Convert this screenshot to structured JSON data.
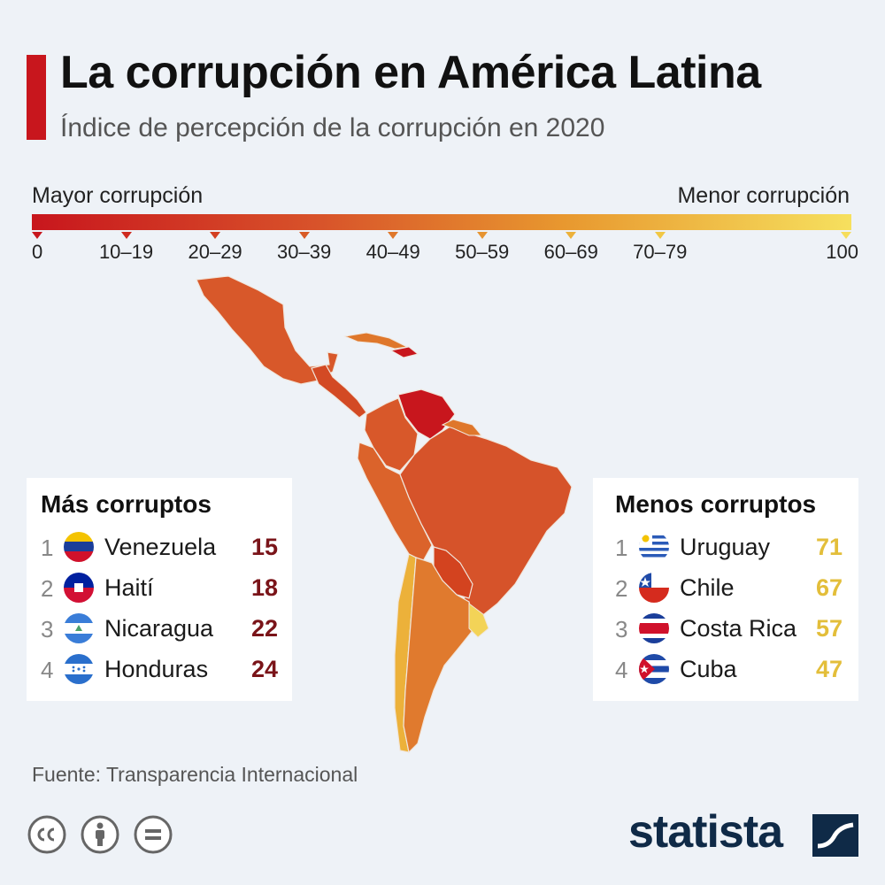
{
  "header": {
    "title": "La corrupción en América Latina",
    "subtitle": "Índice de percepción de la corrupción en 2020"
  },
  "legend": {
    "left_label": "Mayor corrupción",
    "right_label": "Menor corrupción",
    "scale_min": 0,
    "scale_max": 100,
    "ticks": [
      {
        "label": "0",
        "value": 0,
        "color": "#c8161d"
      },
      {
        "label": "10–19",
        "value": 11,
        "color": "#cf2a1f"
      },
      {
        "label": "20–29",
        "value": 22,
        "color": "#d33f22"
      },
      {
        "label": "30–39",
        "value": 33,
        "color": "#d85a26"
      },
      {
        "label": "40–49",
        "value": 44,
        "color": "#df772b"
      },
      {
        "label": "50–59",
        "value": 55,
        "color": "#e69432"
      },
      {
        "label": "60–69",
        "value": 66,
        "color": "#ecb13a"
      },
      {
        "label": "70–79",
        "value": 77,
        "color": "#f1c744"
      },
      {
        "label": "100",
        "value": 100,
        "color": "#f6dd5a"
      }
    ]
  },
  "most_corrupt": {
    "title": "Más corruptos",
    "items": [
      {
        "rank": "1",
        "country": "Venezuela",
        "score": "15",
        "flag": "venezuela-flag-icon"
      },
      {
        "rank": "2",
        "country": "Haití",
        "score": "18",
        "flag": "haiti-flag-icon"
      },
      {
        "rank": "3",
        "country": "Nicaragua",
        "score": "22",
        "flag": "nicaragua-flag-icon"
      },
      {
        "rank": "4",
        "country": "Honduras",
        "score": "24",
        "flag": "honduras-flag-icon"
      }
    ],
    "score_color": "#7a1419"
  },
  "least_corrupt": {
    "title": "Menos corruptos",
    "items": [
      {
        "rank": "1",
        "country": "Uruguay",
        "score": "71",
        "flag": "uruguay-flag-icon"
      },
      {
        "rank": "2",
        "country": "Chile",
        "score": "67",
        "flag": "chile-flag-icon"
      },
      {
        "rank": "3",
        "country": "Costa Rica",
        "score": "57",
        "flag": "costa-rica-flag-icon"
      },
      {
        "rank": "4",
        "country": "Cuba",
        "score": "47",
        "flag": "cuba-flag-icon"
      }
    ],
    "score_color": "#e3be3a"
  },
  "footer": {
    "source": "Fuente: Transparencia Internacional",
    "brand": "statista"
  },
  "colors": {
    "accent": "#c8161d",
    "background": "#eef2f7",
    "brand": "#0f2a47"
  }
}
